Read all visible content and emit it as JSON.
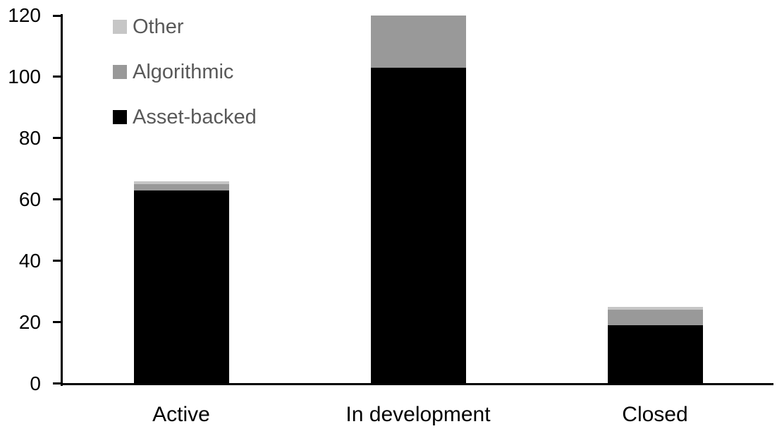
{
  "chart_data": {
    "type": "bar",
    "stacked": true,
    "title": "",
    "xlabel": "",
    "ylabel": "",
    "categories": [
      "Active",
      "In development",
      "Closed"
    ],
    "series": [
      {
        "name": "Asset-backed",
        "color": "#000000",
        "values": [
          63,
          103,
          19
        ]
      },
      {
        "name": "Algorithmic",
        "color": "#999999",
        "values": [
          2,
          17,
          5
        ]
      },
      {
        "name": "Other",
        "color": "#c6c6c6",
        "values": [
          1,
          0,
          1
        ]
      }
    ],
    "ylim": [
      0,
      120
    ],
    "yticks": [
      0,
      20,
      40,
      60,
      80,
      100,
      120
    ],
    "grid": false,
    "legend": {
      "position": "top-left",
      "order": [
        "Other",
        "Algorithmic",
        "Asset-backed"
      ],
      "text_color": "#595959"
    },
    "axis_color": "#000000",
    "background_color": "#ffffff"
  }
}
